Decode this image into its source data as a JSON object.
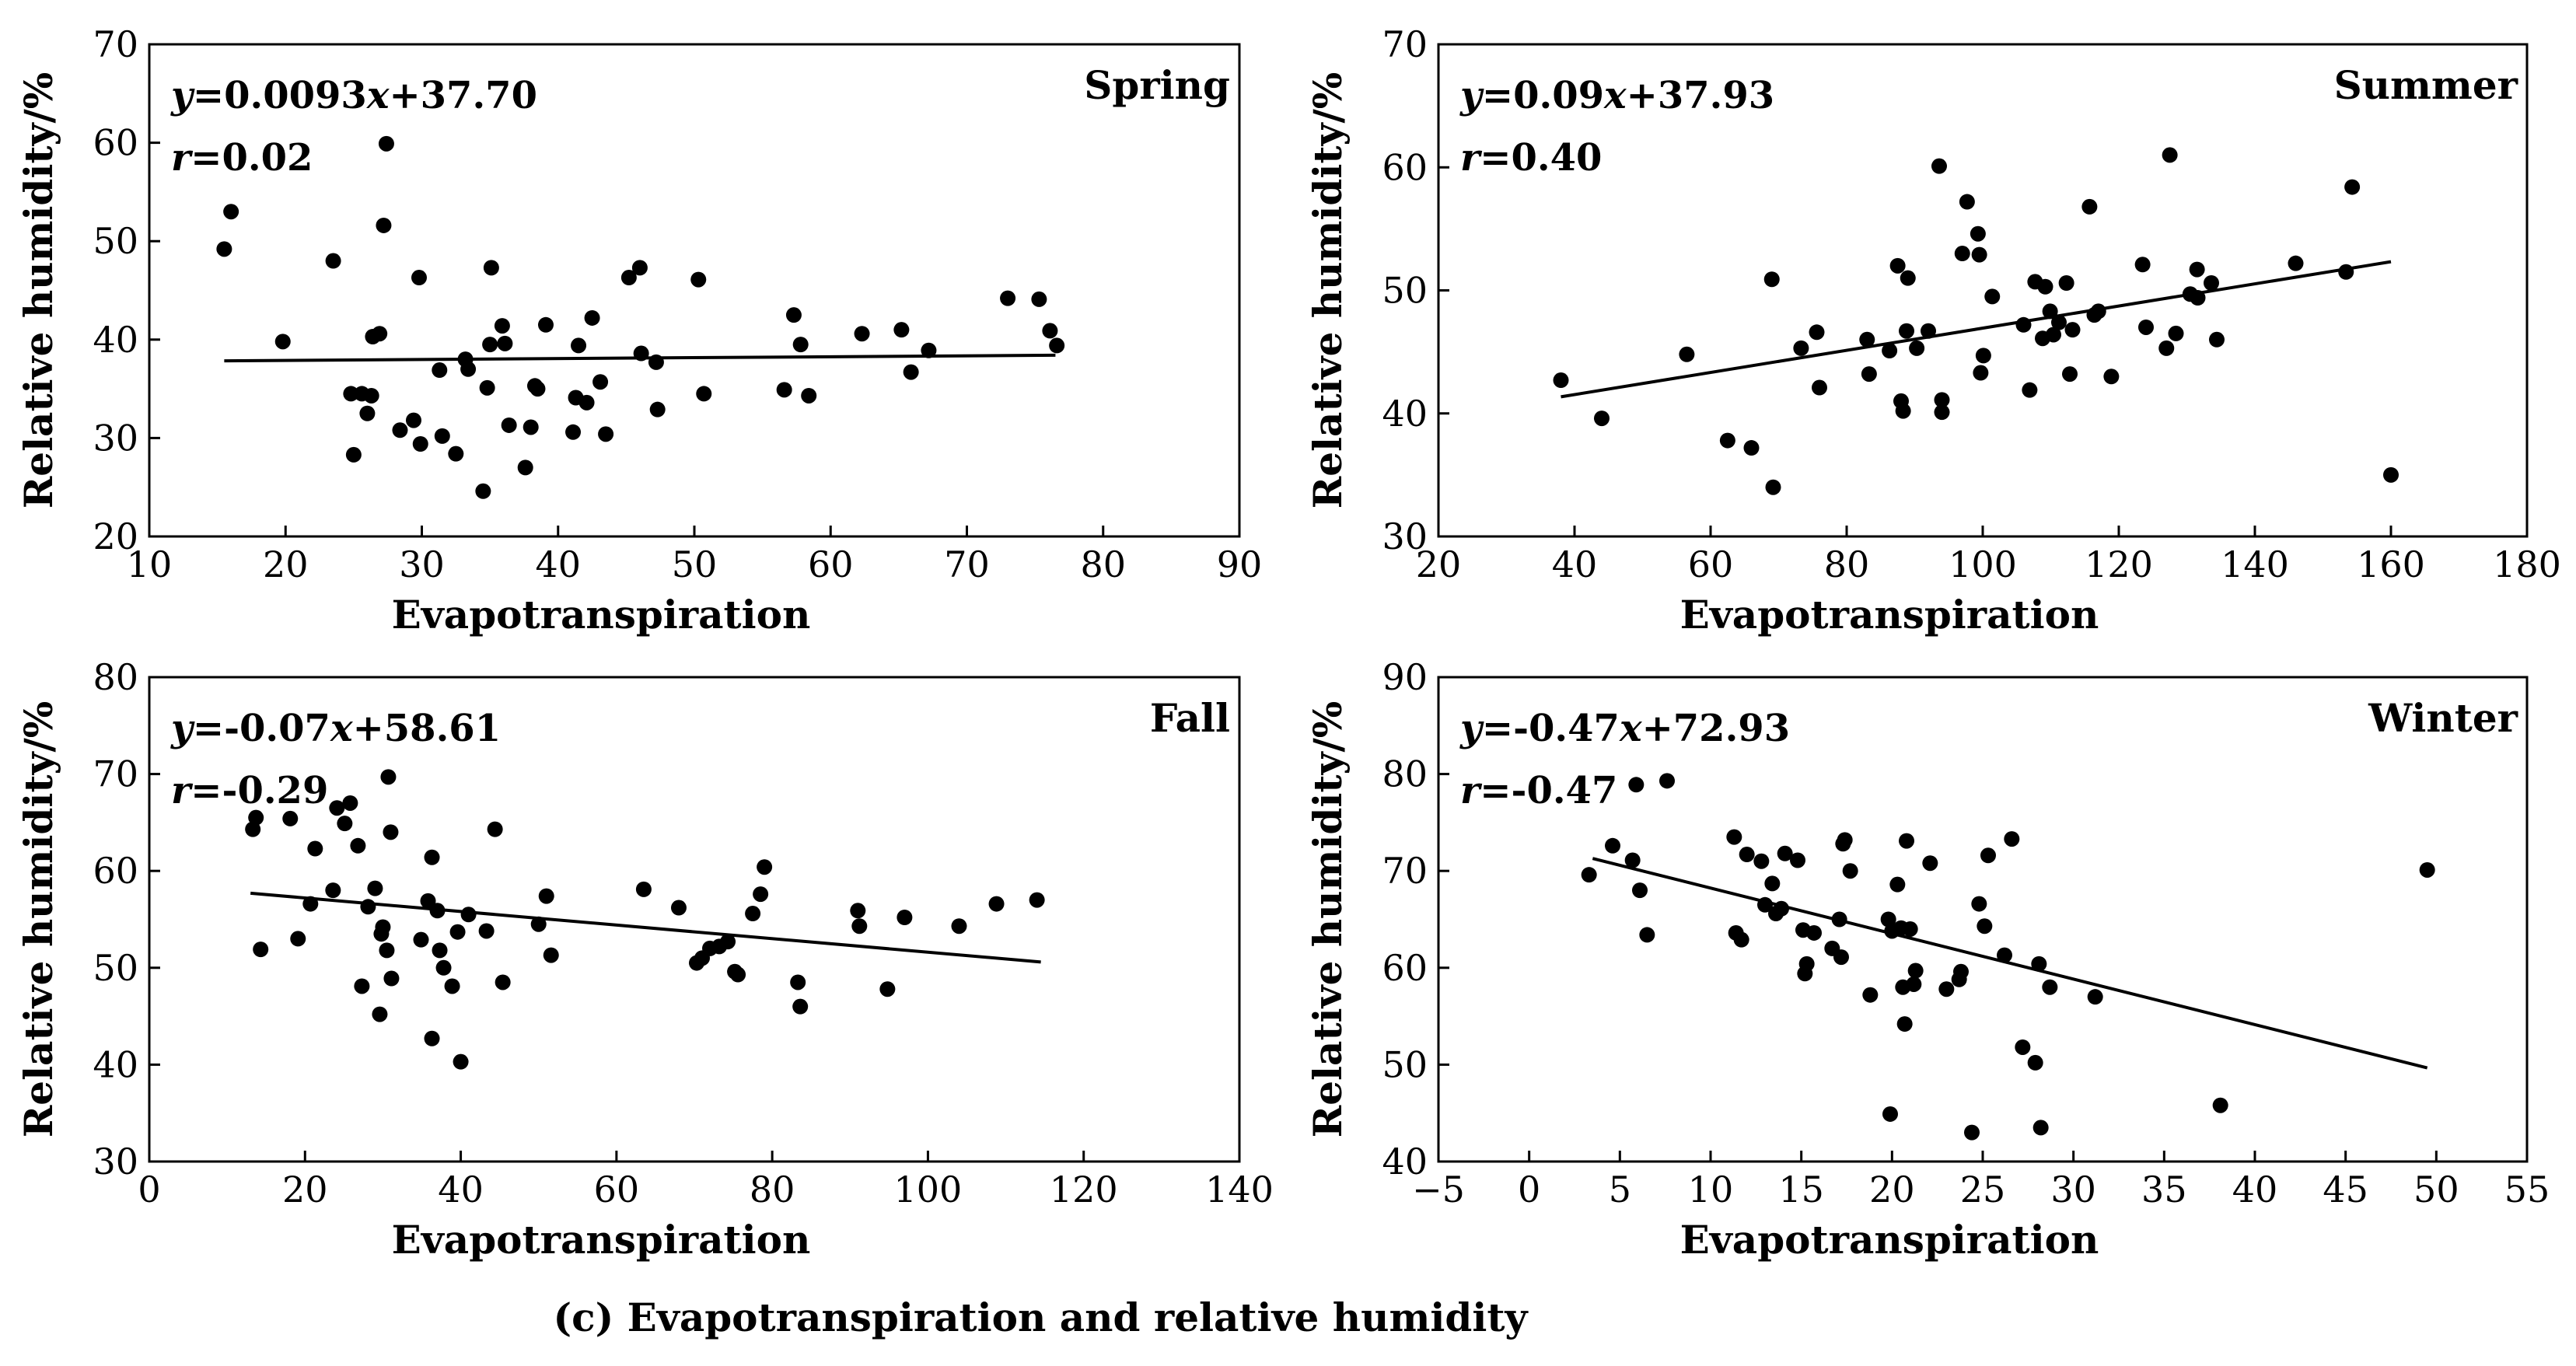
{
  "caption": "(c) Evapotranspiration and relative humidity",
  "colors": {
    "ink": "#000000",
    "background": "#ffffff"
  },
  "chart_data": [
    {
      "type": "scatter",
      "title": "Spring",
      "xlabel": "Evapotranspiration",
      "ylabel": "Relative humidity/%",
      "xlim": [
        10,
        90
      ],
      "ylim": [
        20,
        70
      ],
      "xticks": [
        10,
        20,
        30,
        40,
        50,
        60,
        70,
        80,
        90
      ],
      "yticks": [
        20,
        30,
        40,
        50,
        60,
        70
      ],
      "equation": {
        "y": "y",
        "eq_prefix": "=0.0093",
        "x": "x",
        "eq_suffix": "+37.70"
      },
      "correlation": {
        "r": "r",
        "value": "=0.02"
      },
      "trend": {
        "slope": 0.0093,
        "intercept": 37.7,
        "x_range": [
          15.5,
          76.5
        ]
      },
      "points": [
        [
          15.5,
          49.2
        ],
        [
          16.0,
          53.0
        ],
        [
          19.8,
          39.8
        ],
        [
          23.5,
          48.0
        ],
        [
          24.8,
          34.5
        ],
        [
          25.0,
          28.3
        ],
        [
          25.6,
          34.5
        ],
        [
          26.0,
          32.5
        ],
        [
          26.3,
          34.3
        ],
        [
          26.4,
          40.3
        ],
        [
          26.9,
          40.6
        ],
        [
          27.2,
          51.6
        ],
        [
          27.4,
          59.9
        ],
        [
          28.4,
          30.8
        ],
        [
          29.4,
          31.8
        ],
        [
          29.8,
          46.3
        ],
        [
          29.9,
          29.4
        ],
        [
          31.3,
          36.9
        ],
        [
          31.5,
          30.2
        ],
        [
          32.5,
          28.4
        ],
        [
          33.2,
          38.0
        ],
        [
          33.4,
          37.0
        ],
        [
          34.5,
          24.6
        ],
        [
          34.8,
          35.1
        ],
        [
          35.0,
          39.5
        ],
        [
          35.1,
          47.3
        ],
        [
          35.9,
          41.4
        ],
        [
          36.1,
          39.6
        ],
        [
          36.4,
          31.3
        ],
        [
          37.6,
          27.0
        ],
        [
          38.0,
          31.1
        ],
        [
          38.3,
          35.3
        ],
        [
          38.5,
          35.0
        ],
        [
          39.1,
          41.5
        ],
        [
          41.1,
          30.6
        ],
        [
          41.3,
          34.1
        ],
        [
          41.5,
          39.4
        ],
        [
          42.1,
          33.6
        ],
        [
          42.5,
          42.2
        ],
        [
          43.1,
          35.7
        ],
        [
          43.5,
          30.4
        ],
        [
          45.2,
          46.3
        ],
        [
          46.0,
          47.3
        ],
        [
          46.1,
          38.6
        ],
        [
          47.2,
          37.7
        ],
        [
          47.3,
          32.9
        ],
        [
          50.3,
          46.1
        ],
        [
          50.7,
          34.5
        ],
        [
          56.6,
          34.9
        ],
        [
          57.3,
          42.5
        ],
        [
          57.8,
          39.5
        ],
        [
          58.4,
          34.3
        ],
        [
          62.3,
          40.6
        ],
        [
          65.2,
          41.0
        ],
        [
          65.9,
          36.7
        ],
        [
          67.2,
          38.9
        ],
        [
          73.0,
          44.2
        ],
        [
          75.3,
          44.1
        ],
        [
          76.1,
          40.9
        ],
        [
          76.6,
          39.4
        ]
      ]
    },
    {
      "type": "scatter",
      "title": "Summer",
      "xlabel": "Evapotranspiration",
      "ylabel": "Relative humidity/%",
      "xlim": [
        20,
        180
      ],
      "ylim": [
        30,
        70
      ],
      "xticks": [
        20,
        40,
        60,
        80,
        100,
        120,
        140,
        160,
        180
      ],
      "yticks": [
        30,
        40,
        50,
        60,
        70
      ],
      "equation": {
        "y": "y",
        "eq_prefix": "=0.09",
        "x": "x",
        "eq_suffix": "+37.93"
      },
      "correlation": {
        "r": "r",
        "value": "=0.40"
      },
      "trend": {
        "slope": 0.09,
        "intercept": 37.93,
        "x_range": [
          38,
          160
        ]
      },
      "points": [
        [
          38.0,
          42.7
        ],
        [
          44.0,
          39.6
        ],
        [
          56.5,
          44.8
        ],
        [
          62.5,
          37.8
        ],
        [
          66.0,
          37.2
        ],
        [
          69.0,
          50.9
        ],
        [
          69.2,
          34.0
        ],
        [
          73.3,
          45.3
        ],
        [
          75.6,
          46.6
        ],
        [
          76.0,
          42.1
        ],
        [
          83.0,
          46.0
        ],
        [
          83.3,
          43.2
        ],
        [
          86.3,
          45.1
        ],
        [
          87.5,
          52.0
        ],
        [
          88.0,
          41.0
        ],
        [
          88.3,
          40.2
        ],
        [
          88.8,
          46.7
        ],
        [
          89.0,
          51.0
        ],
        [
          90.3,
          45.3
        ],
        [
          92.0,
          46.7
        ],
        [
          93.6,
          60.1
        ],
        [
          94.0,
          41.1
        ],
        [
          94.0,
          40.1
        ],
        [
          97.0,
          53.0
        ],
        [
          97.7,
          57.2
        ],
        [
          99.3,
          54.6
        ],
        [
          99.5,
          52.9
        ],
        [
          99.7,
          43.3
        ],
        [
          100.1,
          44.7
        ],
        [
          101.4,
          49.5
        ],
        [
          106.0,
          47.2
        ],
        [
          106.9,
          41.9
        ],
        [
          107.7,
          50.7
        ],
        [
          108.8,
          46.1
        ],
        [
          109.2,
          50.3
        ],
        [
          109.9,
          48.3
        ],
        [
          110.4,
          46.4
        ],
        [
          111.2,
          47.4
        ],
        [
          112.3,
          50.6
        ],
        [
          112.8,
          43.2
        ],
        [
          113.2,
          46.8
        ],
        [
          115.7,
          56.8
        ],
        [
          116.4,
          48.0
        ],
        [
          117.0,
          48.3
        ],
        [
          118.9,
          43.0
        ],
        [
          123.5,
          52.1
        ],
        [
          124.0,
          47.0
        ],
        [
          127.5,
          61.0
        ],
        [
          127.0,
          45.3
        ],
        [
          128.4,
          46.5
        ],
        [
          130.5,
          49.7
        ],
        [
          131.5,
          51.7
        ],
        [
          131.6,
          49.4
        ],
        [
          133.6,
          50.6
        ],
        [
          134.4,
          46.0
        ],
        [
          146.0,
          52.2
        ],
        [
          153.4,
          51.5
        ],
        [
          154.3,
          58.4
        ],
        [
          160.0,
          35.0
        ]
      ]
    },
    {
      "type": "scatter",
      "title": "Fall",
      "xlabel": "Evapotranspiration",
      "ylabel": "Relative humidity/%",
      "xlim": [
        0,
        140
      ],
      "ylim": [
        30,
        80
      ],
      "xticks": [
        0,
        20,
        40,
        60,
        80,
        100,
        120,
        140
      ],
      "yticks": [
        30,
        40,
        50,
        60,
        70,
        80
      ],
      "equation": {
        "y": "y",
        "eq_prefix": "=-0.07",
        "x": "x",
        "eq_suffix": "+58.61"
      },
      "correlation": {
        "r": "r",
        "value": "=-0.29"
      },
      "trend": {
        "slope": -0.07,
        "intercept": 58.61,
        "x_range": [
          13,
          114.5
        ]
      },
      "points": [
        [
          13.3,
          64.3
        ],
        [
          13.7,
          65.5
        ],
        [
          14.3,
          51.9
        ],
        [
          18.1,
          65.4
        ],
        [
          19.1,
          53.0
        ],
        [
          20.7,
          56.6
        ],
        [
          21.3,
          62.3
        ],
        [
          23.6,
          58.0
        ],
        [
          24.1,
          66.5
        ],
        [
          25.1,
          64.9
        ],
        [
          25.8,
          67.0
        ],
        [
          26.8,
          62.6
        ],
        [
          27.3,
          48.1
        ],
        [
          28.1,
          56.3
        ],
        [
          29.0,
          58.2
        ],
        [
          29.6,
          45.2
        ],
        [
          29.8,
          53.5
        ],
        [
          30.0,
          54.2
        ],
        [
          30.5,
          51.8
        ],
        [
          30.7,
          69.7
        ],
        [
          31.0,
          64.0
        ],
        [
          31.1,
          48.9
        ],
        [
          34.9,
          52.9
        ],
        [
          35.8,
          56.9
        ],
        [
          36.3,
          61.4
        ],
        [
          36.3,
          42.7
        ],
        [
          37.0,
          55.9
        ],
        [
          37.3,
          51.8
        ],
        [
          37.8,
          50.0
        ],
        [
          38.9,
          48.1
        ],
        [
          39.6,
          53.7
        ],
        [
          40.0,
          40.3
        ],
        [
          41.0,
          55.5
        ],
        [
          43.3,
          53.8
        ],
        [
          44.4,
          64.3
        ],
        [
          45.4,
          48.5
        ],
        [
          50.0,
          54.5
        ],
        [
          51.0,
          57.4
        ],
        [
          51.6,
          51.3
        ],
        [
          63.5,
          58.1
        ],
        [
          68.0,
          56.2
        ],
        [
          70.3,
          50.5
        ],
        [
          71.0,
          51.0
        ],
        [
          72.0,
          52.0
        ],
        [
          73.2,
          52.2
        ],
        [
          74.3,
          52.7
        ],
        [
          75.2,
          49.6
        ],
        [
          75.6,
          49.3
        ],
        [
          77.5,
          55.6
        ],
        [
          78.5,
          57.6
        ],
        [
          79.0,
          60.4
        ],
        [
          83.3,
          48.5
        ],
        [
          83.6,
          46.0
        ],
        [
          91.0,
          55.9
        ],
        [
          91.2,
          54.3
        ],
        [
          94.8,
          47.8
        ],
        [
          97.0,
          55.2
        ],
        [
          104.0,
          54.3
        ],
        [
          108.8,
          56.6
        ],
        [
          114.0,
          57.0
        ]
      ]
    },
    {
      "type": "scatter",
      "title": "Winter",
      "xlabel": "Evapotranspiration",
      "ylabel": "Relative humidity/%",
      "xlim": [
        -5,
        55
      ],
      "ylim": [
        40,
        90
      ],
      "xticks": [
        -5,
        0,
        5,
        10,
        15,
        20,
        25,
        30,
        35,
        40,
        45,
        50,
        55
      ],
      "xtick_labels": [
        "−5",
        "0",
        "5",
        "10",
        "15",
        "20",
        "25",
        "30",
        "35",
        "40",
        "45",
        "50",
        "55"
      ],
      "yticks": [
        40,
        50,
        60,
        70,
        80,
        90
      ],
      "equation": {
        "y": "y",
        "eq_prefix": "=-0.47",
        "x": "x",
        "eq_suffix": "+72.93"
      },
      "correlation": {
        "r": "r",
        "value": "=-0.47"
      },
      "trend": {
        "slope": -0.47,
        "intercept": 72.93,
        "x_range": [
          3.5,
          49.5
        ]
      },
      "points": [
        [
          3.3,
          69.6
        ],
        [
          4.6,
          72.6
        ],
        [
          5.7,
          71.1
        ],
        [
          5.9,
          78.9
        ],
        [
          6.1,
          68.0
        ],
        [
          6.5,
          63.4
        ],
        [
          7.6,
          79.3
        ],
        [
          11.3,
          73.5
        ],
        [
          11.4,
          63.6
        ],
        [
          11.7,
          62.9
        ],
        [
          12.0,
          71.7
        ],
        [
          12.8,
          71.0
        ],
        [
          13.0,
          66.5
        ],
        [
          13.4,
          68.7
        ],
        [
          13.6,
          65.6
        ],
        [
          13.9,
          66.1
        ],
        [
          14.1,
          71.8
        ],
        [
          14.8,
          71.1
        ],
        [
          15.1,
          63.9
        ],
        [
          15.2,
          59.4
        ],
        [
          15.3,
          60.4
        ],
        [
          15.7,
          63.6
        ],
        [
          16.7,
          62.0
        ],
        [
          17.1,
          65.0
        ],
        [
          17.2,
          61.1
        ],
        [
          17.3,
          72.8
        ],
        [
          17.4,
          73.2
        ],
        [
          17.7,
          70.0
        ],
        [
          18.8,
          57.2
        ],
        [
          19.8,
          65.0
        ],
        [
          19.9,
          44.9
        ],
        [
          20.0,
          63.8
        ],
        [
          20.3,
          68.6
        ],
        [
          20.5,
          64.1
        ],
        [
          20.6,
          58.0
        ],
        [
          20.7,
          54.2
        ],
        [
          20.8,
          73.1
        ],
        [
          21.0,
          64.0
        ],
        [
          21.2,
          58.3
        ],
        [
          21.3,
          59.7
        ],
        [
          22.1,
          70.8
        ],
        [
          23.0,
          57.8
        ],
        [
          23.7,
          58.8
        ],
        [
          23.8,
          59.6
        ],
        [
          24.4,
          43.0
        ],
        [
          24.8,
          66.6
        ],
        [
          25.1,
          64.3
        ],
        [
          25.3,
          71.6
        ],
        [
          26.2,
          61.3
        ],
        [
          26.6,
          73.3
        ],
        [
          27.2,
          51.8
        ],
        [
          27.9,
          50.2
        ],
        [
          28.1,
          60.4
        ],
        [
          28.2,
          43.5
        ],
        [
          28.7,
          58.0
        ],
        [
          31.2,
          57.0
        ],
        [
          38.1,
          45.8
        ],
        [
          49.5,
          70.1
        ]
      ]
    }
  ]
}
